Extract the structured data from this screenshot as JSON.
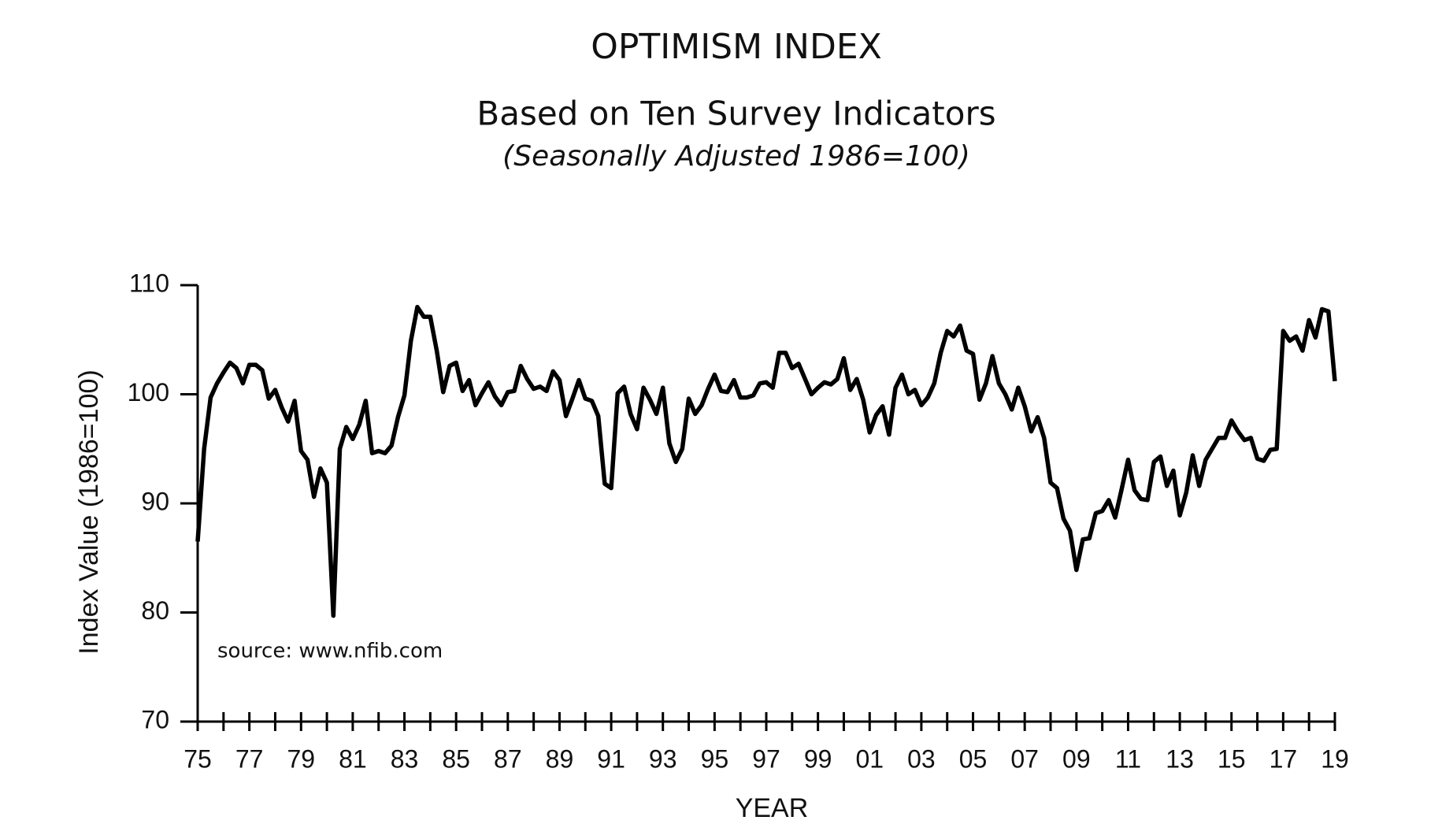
{
  "chart_data": {
    "type": "line",
    "title": "OPTIMISM INDEX",
    "subtitle": "Based on Ten Survey Indicators",
    "note": "(Seasonally Adjusted 1986=100)",
    "y_label": "Index Value (1986=100)",
    "x_label": "YEAR",
    "annotation": "source: www.nfib.com",
    "xlim": [
      1975,
      2019
    ],
    "xticks": [
      {
        "value": 1975,
        "label": "75"
      },
      {
        "value": 1977,
        "label": "77"
      },
      {
        "value": 1979,
        "label": "79"
      },
      {
        "value": 1981,
        "label": "81"
      },
      {
        "value": 1983,
        "label": "83"
      },
      {
        "value": 1985,
        "label": "85"
      },
      {
        "value": 1987,
        "label": "87"
      },
      {
        "value": 1989,
        "label": "89"
      },
      {
        "value": 1991,
        "label": "91"
      },
      {
        "value": 1993,
        "label": "93"
      },
      {
        "value": 1995,
        "label": "95"
      },
      {
        "value": 1997,
        "label": "97"
      },
      {
        "value": 1999,
        "label": "99"
      },
      {
        "value": 2001,
        "label": "01"
      },
      {
        "value": 2003,
        "label": "03"
      },
      {
        "value": 2005,
        "label": "05"
      },
      {
        "value": 2007,
        "label": "07"
      },
      {
        "value": 2009,
        "label": "09"
      },
      {
        "value": 2011,
        "label": "11"
      },
      {
        "value": 2013,
        "label": "13"
      },
      {
        "value": 2015,
        "label": "15"
      },
      {
        "value": 2017,
        "label": "17"
      },
      {
        "value": 2019,
        "label": "19"
      }
    ],
    "ylim": [
      70,
      110
    ],
    "yticks": [
      70,
      80,
      90,
      100,
      110
    ],
    "x": [
      1975,
      1975.25,
      1975.5,
      1975.75,
      1976,
      1976.25,
      1976.5,
      1976.75,
      1977,
      1977.25,
      1977.5,
      1977.75,
      1978,
      1978.25,
      1978.5,
      1978.75,
      1979,
      1979.25,
      1979.5,
      1979.75,
      1980,
      1980.25,
      1980.5,
      1980.75,
      1981,
      1981.25,
      1981.5,
      1981.75,
      1982,
      1982.25,
      1982.5,
      1982.75,
      1983,
      1983.25,
      1983.5,
      1983.75,
      1984,
      1984.25,
      1984.5,
      1984.75,
      1985,
      1985.25,
      1985.5,
      1985.75,
      1986,
      1986.25,
      1986.5,
      1986.75,
      1987,
      1987.25,
      1987.5,
      1987.75,
      1988,
      1988.25,
      1988.5,
      1988.75,
      1989,
      1989.25,
      1989.5,
      1989.75,
      1990,
      1990.25,
      1990.5,
      1990.75,
      1991,
      1991.25,
      1991.5,
      1991.75,
      1992,
      1992.25,
      1992.5,
      1992.75,
      1993,
      1993.25,
      1993.5,
      1993.75,
      1994,
      1994.25,
      1994.5,
      1994.75,
      1995,
      1995.25,
      1995.5,
      1995.75,
      1996,
      1996.25,
      1996.5,
      1996.75,
      1997,
      1997.25,
      1997.5,
      1997.75,
      1998,
      1998.25,
      1998.5,
      1998.75,
      1999,
      1999.25,
      1999.5,
      1999.75,
      2000,
      2000.25,
      2000.5,
      2000.75,
      2001,
      2001.25,
      2001.5,
      2001.75,
      2002,
      2002.25,
      2002.5,
      2002.75,
      2003,
      2003.25,
      2003.5,
      2003.75,
      2004,
      2004.25,
      2004.5,
      2004.75,
      2005,
      2005.25,
      2005.5,
      2005.75,
      2006,
      2006.25,
      2006.5,
      2006.75,
      2007,
      2007.25,
      2007.5,
      2007.75,
      2008,
      2008.25,
      2008.5,
      2008.75,
      2009,
      2009.25,
      2009.5,
      2009.75,
      2010,
      2010.25,
      2010.5,
      2010.75,
      2011,
      2011.25,
      2011.5,
      2011.75,
      2012,
      2012.25,
      2012.5,
      2012.75,
      2013,
      2013.25,
      2013.5,
      2013.75,
      2014,
      2014.25,
      2014.5,
      2014.75,
      2015,
      2015.25,
      2015.5,
      2015.75,
      2016,
      2016.25,
      2016.5,
      2016.75,
      2017,
      2017.25,
      2017.5,
      2017.75,
      2018,
      2018.25,
      2018.5,
      2018.75,
      2019
    ],
    "series": [
      {
        "name": "Optimism Index",
        "color": "#000000",
        "values": [
          86.5,
          95,
          99.7,
          101,
          102,
          102.9,
          102.4,
          101,
          102.7,
          102.7,
          102.2,
          99.6,
          100.4,
          98.8,
          97.5,
          99.4,
          94.8,
          94,
          90.6,
          93.2,
          91.9,
          79.7,
          95,
          97,
          95.9,
          97.2,
          99.4,
          94.6,
          94.8,
          94.6,
          95.3,
          97.9,
          99.9,
          104.9,
          108,
          107.1,
          107.1,
          104,
          100.2,
          102.6,
          102.9,
          100.3,
          101.3,
          99,
          100.1,
          101.1,
          99.8,
          99,
          100.2,
          100.3,
          102.6,
          101.4,
          100.5,
          100.7,
          100.3,
          102.1,
          101.3,
          98,
          99.6,
          101.3,
          99.6,
          99.4,
          98,
          91.8,
          91.4,
          100.1,
          100.7,
          98.2,
          96.8,
          100.6,
          99.5,
          98.2,
          100.6,
          95.5,
          93.8,
          95,
          99.6,
          98.2,
          99,
          100.5,
          101.8,
          100.3,
          100.2,
          101.3,
          99.7,
          99.7,
          99.9,
          101,
          101.1,
          100.6,
          103.8,
          103.8,
          102.4,
          102.8,
          101.4,
          100,
          100.6,
          101.1,
          100.9,
          101.4,
          103.3,
          100.4,
          101.4,
          99.5,
          96.5,
          98.1,
          98.9,
          96.3,
          100.6,
          101.8,
          100,
          100.4,
          99,
          99.7,
          101,
          103.8,
          105.8,
          105.3,
          106.3,
          104,
          103.7,
          99.5,
          101,
          103.5,
          101,
          100,
          98.6,
          100.6,
          98.9,
          96.6,
          97.9,
          96,
          91.9,
          91.4,
          88.6,
          87.5,
          83.9,
          86.7,
          86.8,
          89.1,
          89.3,
          90.3,
          88.7,
          91.3,
          94,
          91.2,
          90.4,
          90.3,
          93.8,
          94.3,
          91.6,
          93,
          88.9,
          91,
          94.4,
          91.6,
          94,
          95,
          96,
          96,
          97.6,
          96.6,
          95.8,
          96,
          94.1,
          93.9,
          94.9,
          95,
          105.8,
          104.9,
          105.3,
          104,
          106.8,
          105.2,
          107.8,
          107.6,
          101.2
        ]
      }
    ]
  }
}
